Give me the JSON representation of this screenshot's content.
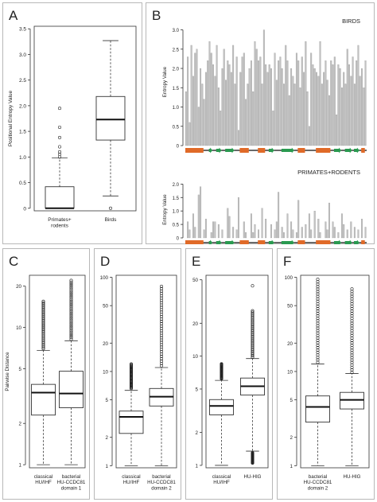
{
  "panel_letters": [
    "A",
    "B",
    "C",
    "D",
    "E",
    "F"
  ],
  "chart_data": [
    {
      "panel": "A",
      "type": "box",
      "ylabel": "Positional Entropy Value",
      "yticks": [
        0,
        0.5,
        1.0,
        1.5,
        2.0,
        2.5,
        3.0,
        3.5
      ],
      "ytick_labels": [
        "0",
        "0.5",
        "1.0",
        "1.5",
        "2.0",
        "2.5",
        "3.0",
        "3.5"
      ],
      "ylim": [
        -0.05,
        3.55
      ],
      "log": false,
      "categories": [
        "Primates+\nrodents",
        "Birds"
      ],
      "boxes": [
        {
          "q1": 0.0,
          "median": 0.0,
          "q3": 0.42,
          "whisker_low": 0.0,
          "whisker_high": 0.98,
          "outliers": [
            1.0,
            1.05,
            1.1,
            1.2,
            1.38,
            1.58,
            1.95
          ]
        },
        {
          "q1": 1.33,
          "median": 1.73,
          "q3": 2.18,
          "whisker_low": 0.24,
          "whisker_high": 3.27,
          "outliers": [
            0.0
          ]
        }
      ]
    },
    {
      "panel": "B",
      "type": "bar",
      "title": "BIRDS",
      "ylabel": "Entropy Value",
      "yticks": [
        0,
        0.5,
        1.0,
        1.5,
        2.0,
        2.5,
        3.0
      ],
      "ytick_labels": [
        "0",
        "0.5",
        "1.0",
        "1.5",
        "2.0",
        "2.5",
        "3.0"
      ],
      "ylim": [
        0,
        3.3
      ],
      "values": [
        1.4,
        2.3,
        0.6,
        2.6,
        1.8,
        2.4,
        2.5,
        1.0,
        2.0,
        1.6,
        1.2,
        1.9,
        2.2,
        2.7,
        2.4,
        2.1,
        1.8,
        2.6,
        1.5,
        0.9,
        2.0,
        2.5,
        1.7,
        2.2,
        2.1,
        1.9,
        2.6,
        1.6,
        2.3,
        0.4,
        1.9,
        2.3,
        2.4,
        1.2,
        1.6,
        2.0,
        2.2,
        1.4,
        2.7,
        2.5,
        2.2,
        2.3,
        1.6,
        3.0,
        2.1,
        1.9,
        2.1,
        2.0,
        0.9,
        2.4,
        1.7,
        2.2,
        2.3,
        2.0,
        1.6,
        2.6,
        2.2,
        1.3,
        2.0,
        1.8,
        1.6,
        2.4,
        2.2,
        1.5,
        2.3,
        1.9,
        2.7,
        1.4,
        0.5,
        2.4,
        2.1,
        2.0,
        1.9,
        1.8,
        2.7,
        1.6,
        1.9,
        2.2,
        1.7,
        1.3,
        2.2,
        2.1,
        2.3,
        0.8,
        2.1,
        2.0,
        1.5,
        1.9,
        1.6,
        2.5,
        2.1,
        1.8,
        2.3,
        1.6,
        2.2,
        2.6,
        1.8,
        2.0,
        1.5,
        2.2
      ]
    },
    {
      "panel": "B",
      "type": "bar",
      "title": "PRIMATES+RODENTS",
      "ylabel": "Entropy Value",
      "yticks": [
        0,
        0.5,
        1.0,
        1.5,
        2.0
      ],
      "ytick_labels": [
        "0",
        "0.5",
        "1.0",
        "1.5",
        "2.0"
      ],
      "ylim": [
        0,
        2.1
      ],
      "values": [
        0,
        0.6,
        0.3,
        0,
        0.9,
        0.4,
        0,
        1.6,
        1.9,
        0,
        0.3,
        0.7,
        0,
        0,
        0.2,
        0.6,
        0.6,
        0,
        0.5,
        0,
        0.3,
        0,
        0,
        1.1,
        0.8,
        0,
        0.4,
        0,
        0.3,
        1.5,
        0,
        0,
        0.6,
        0.2,
        0,
        0,
        0.9,
        0.2,
        0.5,
        0,
        0.3,
        0,
        1.1,
        0,
        0.7,
        0,
        0,
        0.5,
        0,
        0.3,
        0.6,
        1.7,
        0,
        0.4,
        0.2,
        0,
        0.9,
        0,
        0.6,
        0.3,
        0,
        0.2,
        1.4,
        0,
        0.4,
        0,
        0.5,
        0,
        0.9,
        0.3,
        0,
        1.0,
        0,
        0.7,
        0.2,
        0,
        0,
        0.6,
        0.3,
        1.3,
        0,
        0.6,
        0.4,
        0,
        0.2,
        0,
        0.9,
        0.5,
        0,
        0.3,
        0,
        0.6,
        0,
        0.4,
        0,
        0.3,
        0,
        0.7,
        0,
        0.4
      ]
    },
    {
      "panel": "C",
      "type": "box",
      "log": true,
      "ylabel": "Pairwise Distance",
      "yticks": [
        1,
        2,
        5,
        10,
        20
      ],
      "ytick_labels": [
        "1",
        "2",
        "5",
        "10",
        "20"
      ],
      "ylim": [
        0.95,
        24
      ],
      "categories": [
        "classical\nHU/IHF",
        "bacterial\nHU-CCDC81\ndomain 1"
      ],
      "boxes": [
        {
          "q1": 2.3,
          "median": 3.35,
          "q3": 3.85,
          "whisker_low": 1.0,
          "whisker_high": 6.8,
          "outlier_range": [
            7.0,
            15.5
          ]
        },
        {
          "q1": 2.6,
          "median": 3.3,
          "q3": 4.8,
          "whisker_low": 1.0,
          "whisker_high": 8.0,
          "outlier_range": [
            8.2,
            22.0
          ]
        }
      ]
    },
    {
      "panel": "D",
      "type": "box",
      "log": true,
      "yticks": [
        1,
        2,
        5,
        10,
        20,
        50,
        100
      ],
      "ytick_labels": [
        "1",
        "2",
        "5",
        "10",
        "20",
        "50",
        "100"
      ],
      "ylim": [
        0.95,
        105
      ],
      "categories": [
        "classical\nHU/IHF",
        "bacterial\nHU-CCDC81\ndomain 2"
      ],
      "boxes": [
        {
          "q1": 2.2,
          "median": 3.3,
          "q3": 3.8,
          "whisker_low": 1.0,
          "whisker_high": 6.3,
          "outlier_range": [
            6.6,
            12.0
          ]
        },
        {
          "q1": 4.3,
          "median": 5.4,
          "q3": 6.6,
          "whisker_low": 1.0,
          "whisker_high": 11.0,
          "outlier_range": [
            11.5,
            80.0
          ]
        }
      ]
    },
    {
      "panel": "E",
      "type": "box",
      "log": true,
      "yticks": [
        1,
        2,
        5,
        10,
        20,
        50
      ],
      "ytick_labels": [
        "1",
        "2",
        "5",
        "10",
        "20",
        "50"
      ],
      "ylim": [
        0.95,
        55
      ],
      "categories": [
        "classical\nHU/IHF",
        "HU-HIG"
      ],
      "boxes": [
        {
          "q1": 2.9,
          "median": 3.5,
          "q3": 4.0,
          "whisker_low": 1.0,
          "whisker_high": 6.0,
          "outlier_range": [
            6.2,
            8.5
          ]
        },
        {
          "q1": 4.4,
          "median": 5.3,
          "q3": 6.3,
          "whisker_low": 1.35,
          "whisker_high": 9.5,
          "outlier_range": [
            9.8,
            26.0
          ],
          "extra_outliers": [
            44.0
          ],
          "low_outlier_range": [
            1.05,
            1.3
          ]
        }
      ]
    },
    {
      "panel": "F",
      "type": "box",
      "log": true,
      "yticks": [
        1,
        2,
        5,
        10,
        20,
        50,
        100
      ],
      "ytick_labels": [
        "1",
        "2",
        "5",
        "10",
        "20",
        "50",
        "100"
      ],
      "ylim": [
        0.95,
        105
      ],
      "categories": [
        "bacterial\nHU-CCDC81\ndomain 2",
        "HU-HIG"
      ],
      "boxes": [
        {
          "q1": 2.9,
          "median": 4.2,
          "q3": 5.5,
          "whisker_low": 1.0,
          "whisker_high": 12.0,
          "outlier_range": [
            12.5,
            95.0
          ]
        },
        {
          "q1": 4.0,
          "median": 5.0,
          "q3": 6.0,
          "whisker_low": 1.0,
          "whisker_high": 9.5,
          "outlier_range": [
            9.8,
            75.0
          ]
        }
      ]
    }
  ]
}
